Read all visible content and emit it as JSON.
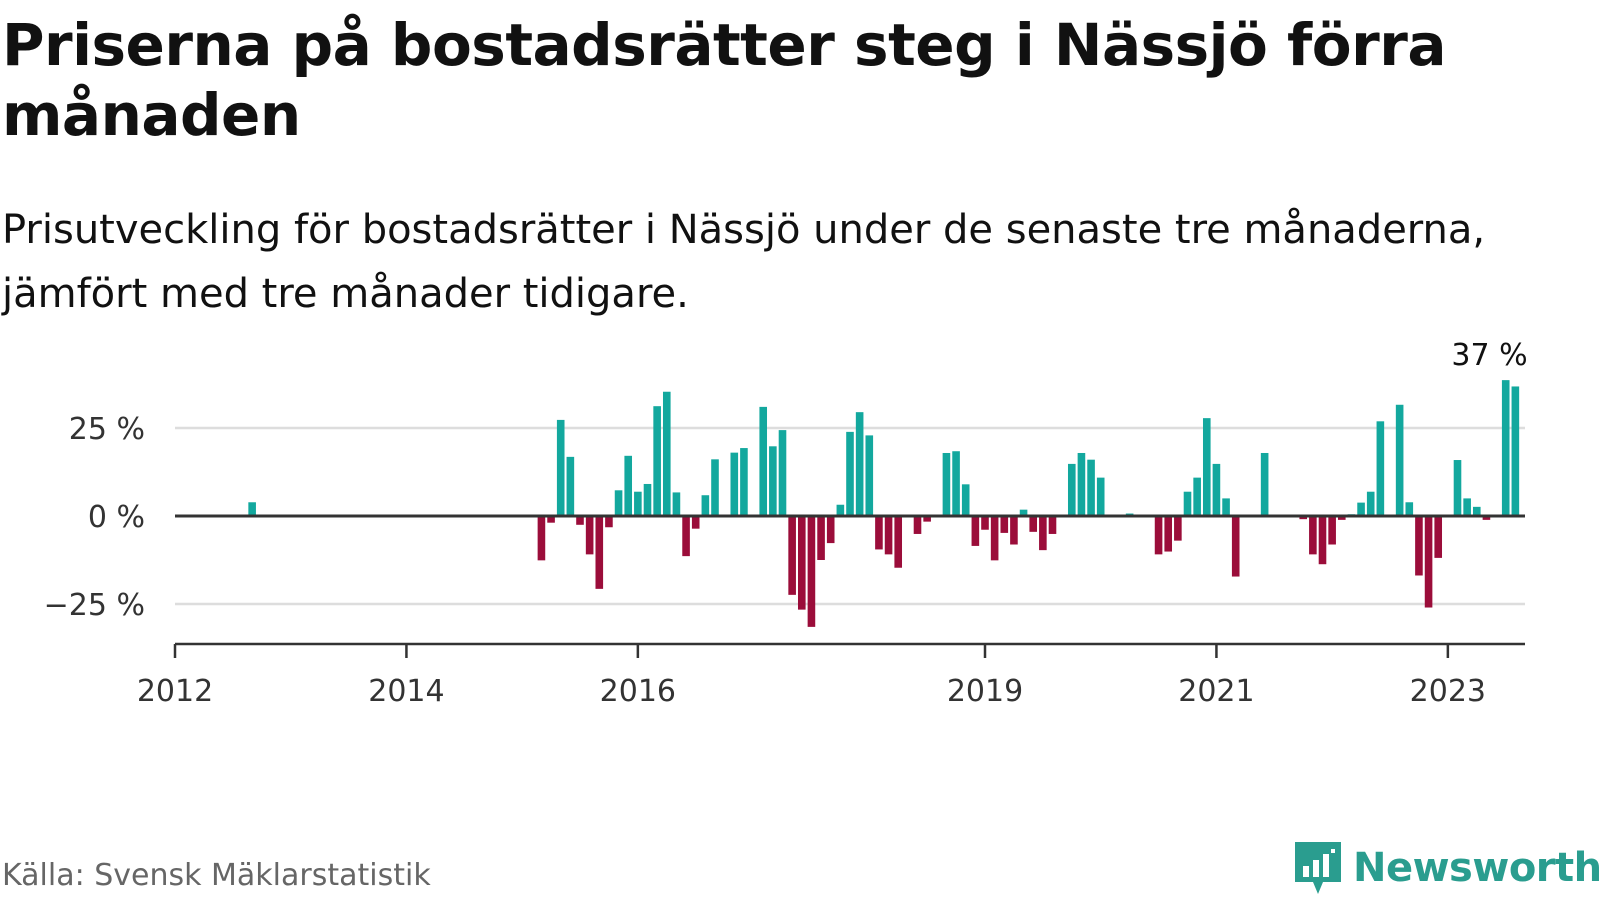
{
  "header": {
    "title": "Priserna på bostadsrätter steg i Nässjö förra månaden",
    "subtitle": "Prisutveckling för bostadsrätter i Nässjö under de senaste tre månaderna, jämfört med tre månader tidigare."
  },
  "footer": {
    "source": "Källa: Svensk Mäklarstatistik",
    "brand": "Newsworthy"
  },
  "colors": {
    "positive": "#13a89e",
    "negative": "#9b0d3a",
    "grid": "#dddddd",
    "axis": "#333333",
    "brand": "#2a9d8f"
  },
  "chart_data": {
    "type": "bar",
    "y_unit": "%",
    "ylim": [
      -37,
      37
    ],
    "y_ticks": [
      {
        "value": 25,
        "label": "25 %"
      },
      {
        "value": 0,
        "label": "0 %"
      },
      {
        "value": -25,
        "label": "−25 %"
      }
    ],
    "x_ticks": [
      {
        "value": "2012-01",
        "label": "2012"
      },
      {
        "value": "2014-01",
        "label": "2014"
      },
      {
        "value": "2016-01",
        "label": "2016"
      },
      {
        "value": "2019-01",
        "label": "2019"
      },
      {
        "value": "2021-01",
        "label": "2021"
      },
      {
        "value": "2023-01",
        "label": "2023"
      }
    ],
    "x_range": [
      "2012-01",
      "2023-09"
    ],
    "grid": true,
    "annotation": {
      "x": "2023-02",
      "label": "37 %"
    },
    "series": [
      {
        "points": [
          {
            "x": "2012-09",
            "y": 3.9
          },
          {
            "x": "2015-03",
            "y": -12.6
          },
          {
            "x": "2015-04",
            "y": -1.9
          },
          {
            "x": "2015-05",
            "y": 27.3
          },
          {
            "x": "2015-06",
            "y": 16.8
          },
          {
            "x": "2015-07",
            "y": -2.5
          },
          {
            "x": "2015-08",
            "y": -10.9
          },
          {
            "x": "2015-09",
            "y": -20.7
          },
          {
            "x": "2015-10",
            "y": -3.2
          },
          {
            "x": "2015-11",
            "y": 7.3
          },
          {
            "x": "2015-12",
            "y": 17.1
          },
          {
            "x": "2016-01",
            "y": 6.9
          },
          {
            "x": "2016-02",
            "y": 9.1
          },
          {
            "x": "2016-03",
            "y": 31.2
          },
          {
            "x": "2016-04",
            "y": 35.3
          },
          {
            "x": "2016-05",
            "y": 6.7
          },
          {
            "x": "2016-06",
            "y": -11.4
          },
          {
            "x": "2016-07",
            "y": -3.6
          },
          {
            "x": "2016-08",
            "y": 5.9
          },
          {
            "x": "2016-09",
            "y": 16.1
          },
          {
            "x": "2016-11",
            "y": 18.0
          },
          {
            "x": "2016-12",
            "y": 19.3
          },
          {
            "x": "2017-02",
            "y": 31.0
          },
          {
            "x": "2017-03",
            "y": 19.8
          },
          {
            "x": "2017-04",
            "y": 24.4
          },
          {
            "x": "2017-05",
            "y": -22.4
          },
          {
            "x": "2017-06",
            "y": -26.6
          },
          {
            "x": "2017-07",
            "y": -31.5
          },
          {
            "x": "2017-08",
            "y": -12.5
          },
          {
            "x": "2017-09",
            "y": -7.7
          },
          {
            "x": "2017-10",
            "y": 3.2
          },
          {
            "x": "2017-11",
            "y": 23.9
          },
          {
            "x": "2017-12",
            "y": 29.5
          },
          {
            "x": "2018-01",
            "y": 22.9
          },
          {
            "x": "2018-02",
            "y": -9.5
          },
          {
            "x": "2018-03",
            "y": -10.9
          },
          {
            "x": "2018-04",
            "y": -14.7
          },
          {
            "x": "2018-06",
            "y": -5.1
          },
          {
            "x": "2018-07",
            "y": -1.6
          },
          {
            "x": "2018-09",
            "y": 17.9
          },
          {
            "x": "2018-10",
            "y": 18.4
          },
          {
            "x": "2018-11",
            "y": 9.0
          },
          {
            "x": "2018-12",
            "y": -8.5
          },
          {
            "x": "2019-01",
            "y": -3.9
          },
          {
            "x": "2019-02",
            "y": -12.6
          },
          {
            "x": "2019-03",
            "y": -4.8
          },
          {
            "x": "2019-04",
            "y": -8.1
          },
          {
            "x": "2019-05",
            "y": 1.8
          },
          {
            "x": "2019-06",
            "y": -4.5
          },
          {
            "x": "2019-07",
            "y": -9.7
          },
          {
            "x": "2019-08",
            "y": -5.1
          },
          {
            "x": "2019-10",
            "y": 14.8
          },
          {
            "x": "2019-11",
            "y": 17.9
          },
          {
            "x": "2019-12",
            "y": 16.0
          },
          {
            "x": "2020-01",
            "y": 10.9
          },
          {
            "x": "2020-04",
            "y": 0.7
          },
          {
            "x": "2020-07",
            "y": -10.9
          },
          {
            "x": "2020-08",
            "y": -10.1
          },
          {
            "x": "2020-09",
            "y": -7.0
          },
          {
            "x": "2020-10",
            "y": 6.9
          },
          {
            "x": "2020-11",
            "y": 10.9
          },
          {
            "x": "2020-12",
            "y": 27.8
          },
          {
            "x": "2021-01",
            "y": 14.8
          },
          {
            "x": "2021-02",
            "y": 5.0
          },
          {
            "x": "2021-03",
            "y": -17.2
          },
          {
            "x": "2021-06",
            "y": 17.9
          },
          {
            "x": "2021-10",
            "y": -0.9
          },
          {
            "x": "2021-11",
            "y": -10.9
          },
          {
            "x": "2021-12",
            "y": -13.7
          },
          {
            "x": "2022-01",
            "y": -8.1
          },
          {
            "x": "2022-02",
            "y": -1.1
          },
          {
            "x": "2022-03",
            "y": 0.5
          },
          {
            "x": "2022-04",
            "y": 3.8
          },
          {
            "x": "2022-05",
            "y": 6.9
          },
          {
            "x": "2022-06",
            "y": 26.9
          },
          {
            "x": "2022-08",
            "y": 31.6
          },
          {
            "x": "2022-09",
            "y": 3.9
          },
          {
            "x": "2022-10",
            "y": -16.9
          },
          {
            "x": "2022-11",
            "y": -26.0
          },
          {
            "x": "2022-12",
            "y": -11.9
          },
          {
            "x": "2023-02",
            "y": 15.9
          },
          {
            "x": "2023-03",
            "y": 5.0
          },
          {
            "x": "2023-04",
            "y": 2.6
          },
          {
            "x": "2023-05",
            "y": -1.1
          },
          {
            "x": "2023-07",
            "y": 38.6
          },
          {
            "x": "2023-08",
            "y": 36.8
          }
        ]
      }
    ]
  }
}
